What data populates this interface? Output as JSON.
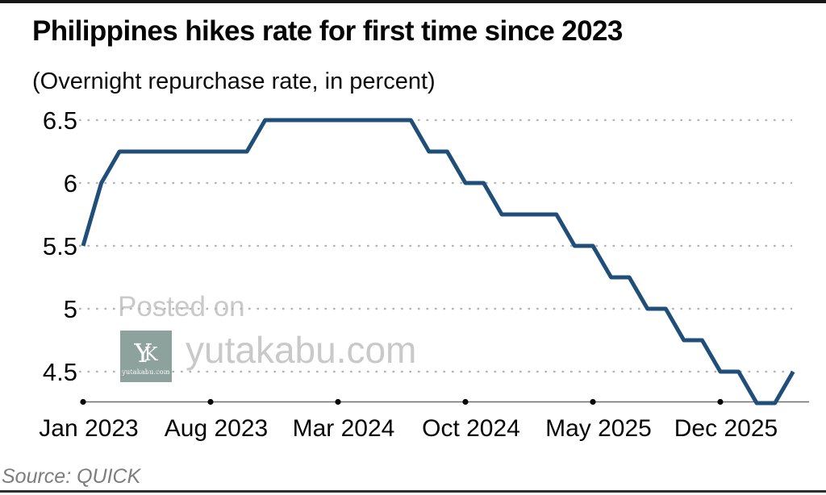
{
  "header": {
    "title": "Philippines hikes rate for first time since 2023",
    "subtitle": "(Overnight repurchase rate, in percent)"
  },
  "footer": {
    "source": "Source: QUICK"
  },
  "watermark": {
    "posted_on": "Posted on",
    "site": "yutakabu.com",
    "logo": {
      "monogram_y": "Y",
      "monogram_k": "K",
      "caption": "yutakabu.com",
      "background": "#8da29d"
    },
    "text_color": "#c9c9c9"
  },
  "chart_data": {
    "type": "line",
    "title": "Philippines hikes rate for first time since 2023",
    "subtitle": "(Overnight repurchase rate, in percent)",
    "source": "Source: QUICK",
    "series_name": "Overnight repurchase rate (%)",
    "x": [
      "Jan 2023",
      "Feb 2023",
      "Mar 2023",
      "Apr 2023",
      "May 2023",
      "Jun 2023",
      "Jul 2023",
      "Aug 2023",
      "Sep 2023",
      "Oct 2023",
      "Nov 2023",
      "Dec 2023",
      "Jan 2024",
      "Feb 2024",
      "Mar 2024",
      "Apr 2024",
      "May 2024",
      "Jun 2024",
      "Jul 2024",
      "Aug 2024",
      "Sep 2024",
      "Oct 2024",
      "Nov 2024",
      "Dec 2024",
      "Jan 2025",
      "Feb 2025",
      "Mar 2025",
      "Apr 2025",
      "May 2025",
      "Jun 2025",
      "Jul 2025",
      "Aug 2025",
      "Sep 2025",
      "Oct 2025",
      "Nov 2025",
      "Dec 2025",
      "Jan 2026",
      "Feb 2026",
      "Mar 2026",
      "Apr 2026"
    ],
    "values": [
      5.5,
      6.0,
      6.25,
      6.25,
      6.25,
      6.25,
      6.25,
      6.25,
      6.25,
      6.25,
      6.5,
      6.5,
      6.5,
      6.5,
      6.5,
      6.5,
      6.5,
      6.5,
      6.5,
      6.25,
      6.25,
      6.0,
      6.0,
      5.75,
      5.75,
      5.75,
      5.75,
      5.5,
      5.5,
      5.25,
      5.25,
      5.0,
      5.0,
      4.75,
      4.75,
      4.5,
      4.5,
      4.25,
      4.25,
      4.5
    ],
    "xtick_labels": [
      "Jan 2023",
      "Aug 2023",
      "Mar 2024",
      "Oct 2024",
      "May 2025",
      "Dec 2025"
    ],
    "xtick_month_index": [
      0,
      7,
      14,
      21,
      28,
      35
    ],
    "ytick_labels": [
      "6.5",
      "6",
      "5.5",
      "5",
      "4.5"
    ],
    "ytick_values": [
      6.5,
      6.0,
      5.5,
      5.0,
      4.5
    ],
    "ylim": [
      4.25,
      6.5
    ],
    "grid": "dotted-horizontal",
    "legend": "none",
    "line_color": "#1f4e79",
    "grid_color": "#b3b3b3",
    "axis_color": "#6e6e6e",
    "tick_dot_color": "#0a0a0a"
  }
}
